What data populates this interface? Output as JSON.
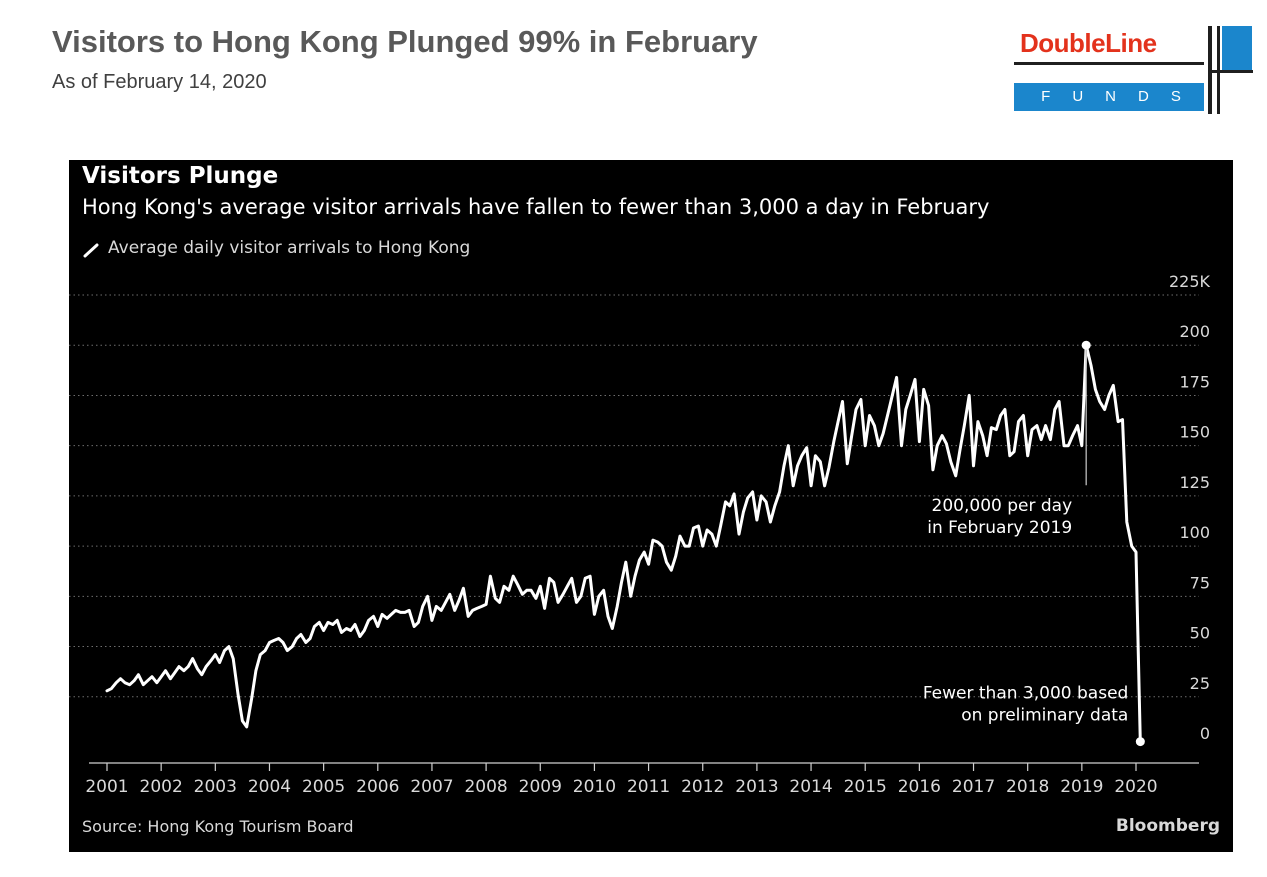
{
  "header": {
    "title": "Visitors to Hong Kong Plunged 99% in February",
    "subtitle": "As of February 14, 2020"
  },
  "logo": {
    "name": "DoubleLine",
    "tagline": "FUNDS",
    "colors": {
      "name": "#e3321c",
      "accent": "#1b86cc"
    }
  },
  "chart_data": {
    "type": "line",
    "title": "Visitors Plunge",
    "subtitle": "Hong Kong's average visitor arrivals have fallen to fewer than 3,000 a day in February",
    "series": [
      {
        "name": "Average daily visitor arrivals to Hong Kong",
        "color": "#ffffff",
        "points": [
          [
            2001.0,
            28
          ],
          [
            2001.08,
            29
          ],
          [
            2001.17,
            32
          ],
          [
            2001.25,
            34
          ],
          [
            2001.33,
            32
          ],
          [
            2001.42,
            31
          ],
          [
            2001.5,
            33
          ],
          [
            2001.58,
            36
          ],
          [
            2001.67,
            31
          ],
          [
            2001.75,
            33
          ],
          [
            2001.83,
            35
          ],
          [
            2001.92,
            32
          ],
          [
            2002.0,
            35
          ],
          [
            2002.08,
            38
          ],
          [
            2002.17,
            34
          ],
          [
            2002.25,
            37
          ],
          [
            2002.33,
            40
          ],
          [
            2002.42,
            38
          ],
          [
            2002.5,
            40
          ],
          [
            2002.58,
            44
          ],
          [
            2002.67,
            39
          ],
          [
            2002.75,
            36
          ],
          [
            2002.83,
            40
          ],
          [
            2002.92,
            43
          ],
          [
            2003.0,
            46
          ],
          [
            2003.08,
            42
          ],
          [
            2003.17,
            48
          ],
          [
            2003.25,
            50
          ],
          [
            2003.33,
            44
          ],
          [
            2003.42,
            26
          ],
          [
            2003.5,
            13
          ],
          [
            2003.58,
            10
          ],
          [
            2003.67,
            24
          ],
          [
            2003.75,
            38
          ],
          [
            2003.83,
            46
          ],
          [
            2003.92,
            48
          ],
          [
            2004.0,
            52
          ],
          [
            2004.08,
            53
          ],
          [
            2004.17,
            54
          ],
          [
            2004.25,
            52
          ],
          [
            2004.33,
            48
          ],
          [
            2004.42,
            50
          ],
          [
            2004.5,
            54
          ],
          [
            2004.58,
            56
          ],
          [
            2004.67,
            52
          ],
          [
            2004.75,
            54
          ],
          [
            2004.83,
            60
          ],
          [
            2004.92,
            62
          ],
          [
            2005.0,
            58
          ],
          [
            2005.08,
            62
          ],
          [
            2005.17,
            61
          ],
          [
            2005.25,
            63
          ],
          [
            2005.33,
            57
          ],
          [
            2005.42,
            59
          ],
          [
            2005.5,
            58
          ],
          [
            2005.58,
            61
          ],
          [
            2005.67,
            55
          ],
          [
            2005.75,
            58
          ],
          [
            2005.83,
            63
          ],
          [
            2005.92,
            65
          ],
          [
            2006.0,
            60
          ],
          [
            2006.08,
            66
          ],
          [
            2006.17,
            64
          ],
          [
            2006.25,
            66
          ],
          [
            2006.33,
            68
          ],
          [
            2006.42,
            67
          ],
          [
            2006.5,
            67
          ],
          [
            2006.58,
            68
          ],
          [
            2006.67,
            60
          ],
          [
            2006.75,
            62
          ],
          [
            2006.83,
            70
          ],
          [
            2006.92,
            75
          ],
          [
            2007.0,
            63
          ],
          [
            2007.08,
            70
          ],
          [
            2007.17,
            68
          ],
          [
            2007.25,
            72
          ],
          [
            2007.33,
            76
          ],
          [
            2007.42,
            68
          ],
          [
            2007.5,
            73
          ],
          [
            2007.58,
            79
          ],
          [
            2007.67,
            65
          ],
          [
            2007.75,
            68
          ],
          [
            2007.83,
            69
          ],
          [
            2007.92,
            70
          ],
          [
            2008.0,
            71
          ],
          [
            2008.08,
            85
          ],
          [
            2008.17,
            74
          ],
          [
            2008.25,
            72
          ],
          [
            2008.33,
            80
          ],
          [
            2008.42,
            78
          ],
          [
            2008.5,
            85
          ],
          [
            2008.58,
            81
          ],
          [
            2008.67,
            76
          ],
          [
            2008.75,
            78
          ],
          [
            2008.83,
            78
          ],
          [
            2008.92,
            74
          ],
          [
            2009.0,
            80
          ],
          [
            2009.08,
            69
          ],
          [
            2009.17,
            84
          ],
          [
            2009.25,
            82
          ],
          [
            2009.33,
            72
          ],
          [
            2009.42,
            76
          ],
          [
            2009.5,
            80
          ],
          [
            2009.58,
            84
          ],
          [
            2009.67,
            72
          ],
          [
            2009.75,
            75
          ],
          [
            2009.83,
            84
          ],
          [
            2009.92,
            85
          ],
          [
            2010.0,
            66
          ],
          [
            2010.08,
            75
          ],
          [
            2010.17,
            78
          ],
          [
            2010.25,
            65
          ],
          [
            2010.33,
            59
          ],
          [
            2010.42,
            70
          ],
          [
            2010.5,
            82
          ],
          [
            2010.58,
            92
          ],
          [
            2010.67,
            75
          ],
          [
            2010.75,
            85
          ],
          [
            2010.83,
            93
          ],
          [
            2010.92,
            97
          ],
          [
            2011.0,
            91
          ],
          [
            2011.08,
            103
          ],
          [
            2011.17,
            102
          ],
          [
            2011.25,
            100
          ],
          [
            2011.33,
            92
          ],
          [
            2011.42,
            88
          ],
          [
            2011.5,
            95
          ],
          [
            2011.58,
            105
          ],
          [
            2011.67,
            100
          ],
          [
            2011.75,
            100
          ],
          [
            2011.83,
            109
          ],
          [
            2011.92,
            110
          ],
          [
            2012.0,
            100
          ],
          [
            2012.08,
            108
          ],
          [
            2012.17,
            106
          ],
          [
            2012.25,
            100
          ],
          [
            2012.33,
            110
          ],
          [
            2012.42,
            122
          ],
          [
            2012.5,
            120
          ],
          [
            2012.58,
            126
          ],
          [
            2012.67,
            106
          ],
          [
            2012.75,
            117
          ],
          [
            2012.83,
            124
          ],
          [
            2012.92,
            127
          ],
          [
            2013.0,
            113
          ],
          [
            2013.08,
            125
          ],
          [
            2013.17,
            122
          ],
          [
            2013.25,
            112
          ],
          [
            2013.33,
            120
          ],
          [
            2013.42,
            127
          ],
          [
            2013.5,
            140
          ],
          [
            2013.58,
            150
          ],
          [
            2013.67,
            130
          ],
          [
            2013.75,
            140
          ],
          [
            2013.83,
            145
          ],
          [
            2013.92,
            149
          ],
          [
            2014.0,
            130
          ],
          [
            2014.08,
            145
          ],
          [
            2014.17,
            142
          ],
          [
            2014.25,
            130
          ],
          [
            2014.33,
            139
          ],
          [
            2014.42,
            152
          ],
          [
            2014.5,
            162
          ],
          [
            2014.58,
            172
          ],
          [
            2014.67,
            141
          ],
          [
            2014.75,
            155
          ],
          [
            2014.83,
            168
          ],
          [
            2014.92,
            173
          ],
          [
            2015.0,
            150
          ],
          [
            2015.08,
            165
          ],
          [
            2015.17,
            160
          ],
          [
            2015.25,
            150
          ],
          [
            2015.33,
            156
          ],
          [
            2015.42,
            166
          ],
          [
            2015.5,
            175
          ],
          [
            2015.58,
            184
          ],
          [
            2015.67,
            150
          ],
          [
            2015.75,
            168
          ],
          [
            2015.83,
            175
          ],
          [
            2015.92,
            183
          ],
          [
            2016.0,
            152
          ],
          [
            2016.08,
            178
          ],
          [
            2016.17,
            170
          ],
          [
            2016.25,
            138
          ],
          [
            2016.33,
            150
          ],
          [
            2016.42,
            155
          ],
          [
            2016.5,
            151
          ],
          [
            2016.58,
            142
          ],
          [
            2016.67,
            135
          ],
          [
            2016.75,
            148
          ],
          [
            2016.83,
            160
          ],
          [
            2016.92,
            175
          ],
          [
            2017.0,
            140
          ],
          [
            2017.08,
            162
          ],
          [
            2017.17,
            155
          ],
          [
            2017.25,
            145
          ],
          [
            2017.33,
            159
          ],
          [
            2017.42,
            158
          ],
          [
            2017.5,
            165
          ],
          [
            2017.58,
            168
          ],
          [
            2017.67,
            145
          ],
          [
            2017.75,
            147
          ],
          [
            2017.83,
            162
          ],
          [
            2017.92,
            165
          ],
          [
            2018.0,
            145
          ],
          [
            2018.08,
            158
          ],
          [
            2018.17,
            160
          ],
          [
            2018.25,
            153
          ],
          [
            2018.33,
            160
          ],
          [
            2018.42,
            153
          ],
          [
            2018.5,
            168
          ],
          [
            2018.58,
            172
          ],
          [
            2018.67,
            150
          ],
          [
            2018.75,
            150
          ],
          [
            2018.83,
            155
          ],
          [
            2018.92,
            160
          ],
          [
            2019.0,
            150
          ],
          [
            2019.08,
            200
          ],
          [
            2019.17,
            190
          ],
          [
            2019.25,
            178
          ],
          [
            2019.33,
            172
          ],
          [
            2019.42,
            168
          ],
          [
            2019.5,
            175
          ],
          [
            2019.58,
            180
          ],
          [
            2019.67,
            162
          ],
          [
            2019.75,
            163
          ],
          [
            2019.83,
            112
          ],
          [
            2019.92,
            100
          ],
          [
            2020.0,
            97
          ],
          [
            2020.08,
            2.7
          ]
        ]
      }
    ],
    "xlim": [
      2001,
      2020.2
    ],
    "ylim": [
      0,
      225
    ],
    "x_ticks": [
      "2001",
      "2002",
      "2003",
      "2004",
      "2005",
      "2006",
      "2007",
      "2008",
      "2009",
      "2010",
      "2011",
      "2012",
      "2013",
      "2014",
      "2015",
      "2016",
      "2017",
      "2018",
      "2019",
      "2020"
    ],
    "y_ticks": [
      {
        "value": 0,
        "label": "0"
      },
      {
        "value": 25,
        "label": "25"
      },
      {
        "value": 50,
        "label": "50"
      },
      {
        "value": 75,
        "label": "75"
      },
      {
        "value": 100,
        "label": "100"
      },
      {
        "value": 125,
        "label": "125"
      },
      {
        "value": 150,
        "label": "150"
      },
      {
        "value": 175,
        "label": "175"
      },
      {
        "value": 200,
        "label": "200"
      },
      {
        "value": 225,
        "label": "225K"
      }
    ],
    "grid": "horizontal dotted",
    "annotations": [
      {
        "lines": [
          "200,000 per day",
          "in February 2019"
        ],
        "x": 2019.08,
        "y": 200
      },
      {
        "lines": [
          "Fewer than 3,000 based",
          "on preliminary data"
        ],
        "x": 2020.08,
        "y": 2.7
      }
    ],
    "source": "Source: Hong Kong Tourism Board",
    "brand": "Bloomberg",
    "background": "#000000"
  }
}
